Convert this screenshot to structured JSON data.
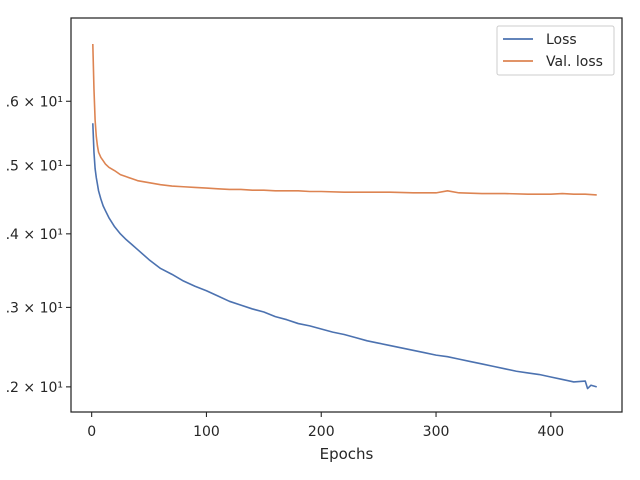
{
  "chart_data": {
    "type": "line",
    "title": "",
    "xlabel": "Epochs",
    "ylabel": "",
    "yscale": "log",
    "grid": false,
    "legend_position": "top-right",
    "xlim": [
      -18,
      462
    ],
    "ylim": [
      11.7,
      17.4
    ],
    "x_ticks": [
      0,
      100,
      200,
      300,
      400
    ],
    "x_tick_labels": [
      "0",
      "100",
      "200",
      "300",
      "400"
    ],
    "y_ticks": [
      12,
      13,
      14,
      15,
      16
    ],
    "y_tick_labels": [
      ".2 × 10¹",
      ".3 × 10¹",
      ".4 × 10¹",
      ".5 × 10¹",
      ".6 × 10¹"
    ],
    "series": [
      {
        "name": "Loss",
        "color": "#4c72b0",
        "x": [
          1,
          2,
          3,
          4,
          5,
          6,
          8,
          10,
          12,
          15,
          20,
          25,
          30,
          35,
          40,
          50,
          60,
          70,
          80,
          90,
          100,
          110,
          120,
          130,
          140,
          150,
          160,
          170,
          180,
          190,
          200,
          210,
          220,
          230,
          240,
          250,
          260,
          270,
          280,
          290,
          300,
          310,
          320,
          330,
          340,
          350,
          360,
          370,
          380,
          390,
          400,
          410,
          420,
          430,
          432,
          435,
          440
        ],
        "y": [
          15.65,
          15.2,
          14.95,
          14.82,
          14.72,
          14.62,
          14.5,
          14.4,
          14.33,
          14.23,
          14.1,
          14.0,
          13.92,
          13.85,
          13.78,
          13.64,
          13.52,
          13.44,
          13.35,
          13.28,
          13.22,
          13.15,
          13.08,
          13.03,
          12.98,
          12.94,
          12.88,
          12.84,
          12.79,
          12.76,
          12.72,
          12.68,
          12.65,
          12.61,
          12.57,
          12.54,
          12.51,
          12.48,
          12.45,
          12.42,
          12.39,
          12.37,
          12.34,
          12.31,
          12.28,
          12.25,
          12.22,
          12.19,
          12.17,
          12.15,
          12.12,
          12.09,
          12.06,
          12.07,
          11.98,
          12.02,
          12.0
        ]
      },
      {
        "name": "Val. loss",
        "color": "#dd8452",
        "x": [
          1,
          2,
          3,
          4,
          5,
          6,
          8,
          10,
          12,
          15,
          20,
          25,
          30,
          35,
          40,
          50,
          60,
          70,
          80,
          90,
          100,
          110,
          120,
          130,
          140,
          150,
          160,
          170,
          180,
          190,
          200,
          220,
          240,
          260,
          280,
          300,
          310,
          320,
          340,
          360,
          380,
          400,
          410,
          420,
          430,
          440
        ],
        "y": [
          16.95,
          16.2,
          15.7,
          15.45,
          15.3,
          15.2,
          15.12,
          15.07,
          15.02,
          14.97,
          14.92,
          14.86,
          14.83,
          14.8,
          14.77,
          14.74,
          14.71,
          14.69,
          14.68,
          14.67,
          14.66,
          14.65,
          14.64,
          14.64,
          14.63,
          14.63,
          14.62,
          14.62,
          14.62,
          14.61,
          14.61,
          14.6,
          14.6,
          14.6,
          14.59,
          14.59,
          14.62,
          14.59,
          14.58,
          14.58,
          14.57,
          14.57,
          14.58,
          14.57,
          14.57,
          14.56
        ]
      }
    ]
  }
}
